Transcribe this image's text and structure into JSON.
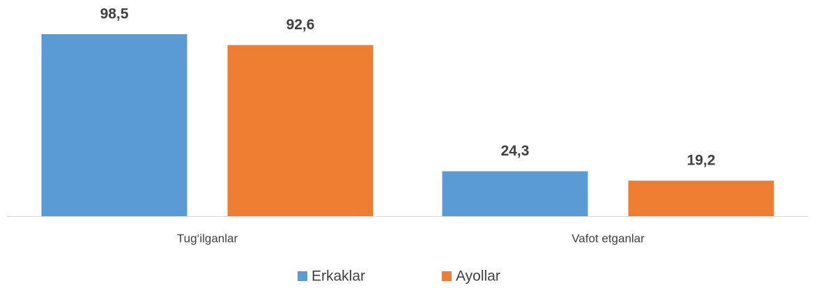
{
  "chart_data": {
    "type": "bar",
    "categories": [
      "Tug‘ilganlar",
      "Vafot etganlar"
    ],
    "series": [
      {
        "name": "Erkaklar",
        "color": "#5b9bd5",
        "values": [
          98.5,
          24.3
        ],
        "value_labels": [
          "98,5",
          "24,3"
        ]
      },
      {
        "name": "Ayollar",
        "color": "#ed7d31",
        "values": [
          92.6,
          19.2
        ],
        "value_labels": [
          "92,6",
          "19,2"
        ]
      }
    ],
    "legend": "bottom"
  }
}
